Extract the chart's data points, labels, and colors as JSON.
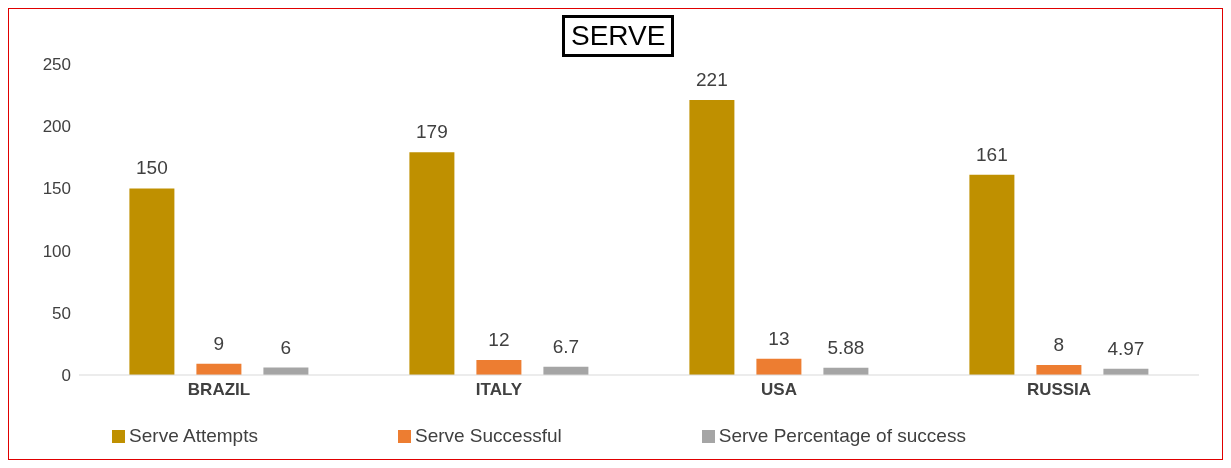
{
  "chart_data": {
    "type": "bar",
    "title": "SERVE",
    "categories": [
      "BRAZIL",
      "ITALY",
      "USA",
      "RUSSIA"
    ],
    "series": [
      {
        "name": "Serve Attempts",
        "color": "#bf9000",
        "values": [
          150,
          179,
          221,
          161
        ]
      },
      {
        "name": "Serve Successful",
        "color": "#ed7d31",
        "values": [
          9,
          12,
          13,
          8
        ]
      },
      {
        "name": "Serve Percentage of success",
        "color": "#a5a5a5",
        "values": [
          6,
          6.7,
          5.88,
          4.97
        ]
      }
    ],
    "ylim": [
      0,
      250
    ],
    "yticks": [
      0,
      50,
      100,
      150,
      200,
      250
    ],
    "grid": false,
    "legend": "bottom",
    "data_labels": true
  }
}
